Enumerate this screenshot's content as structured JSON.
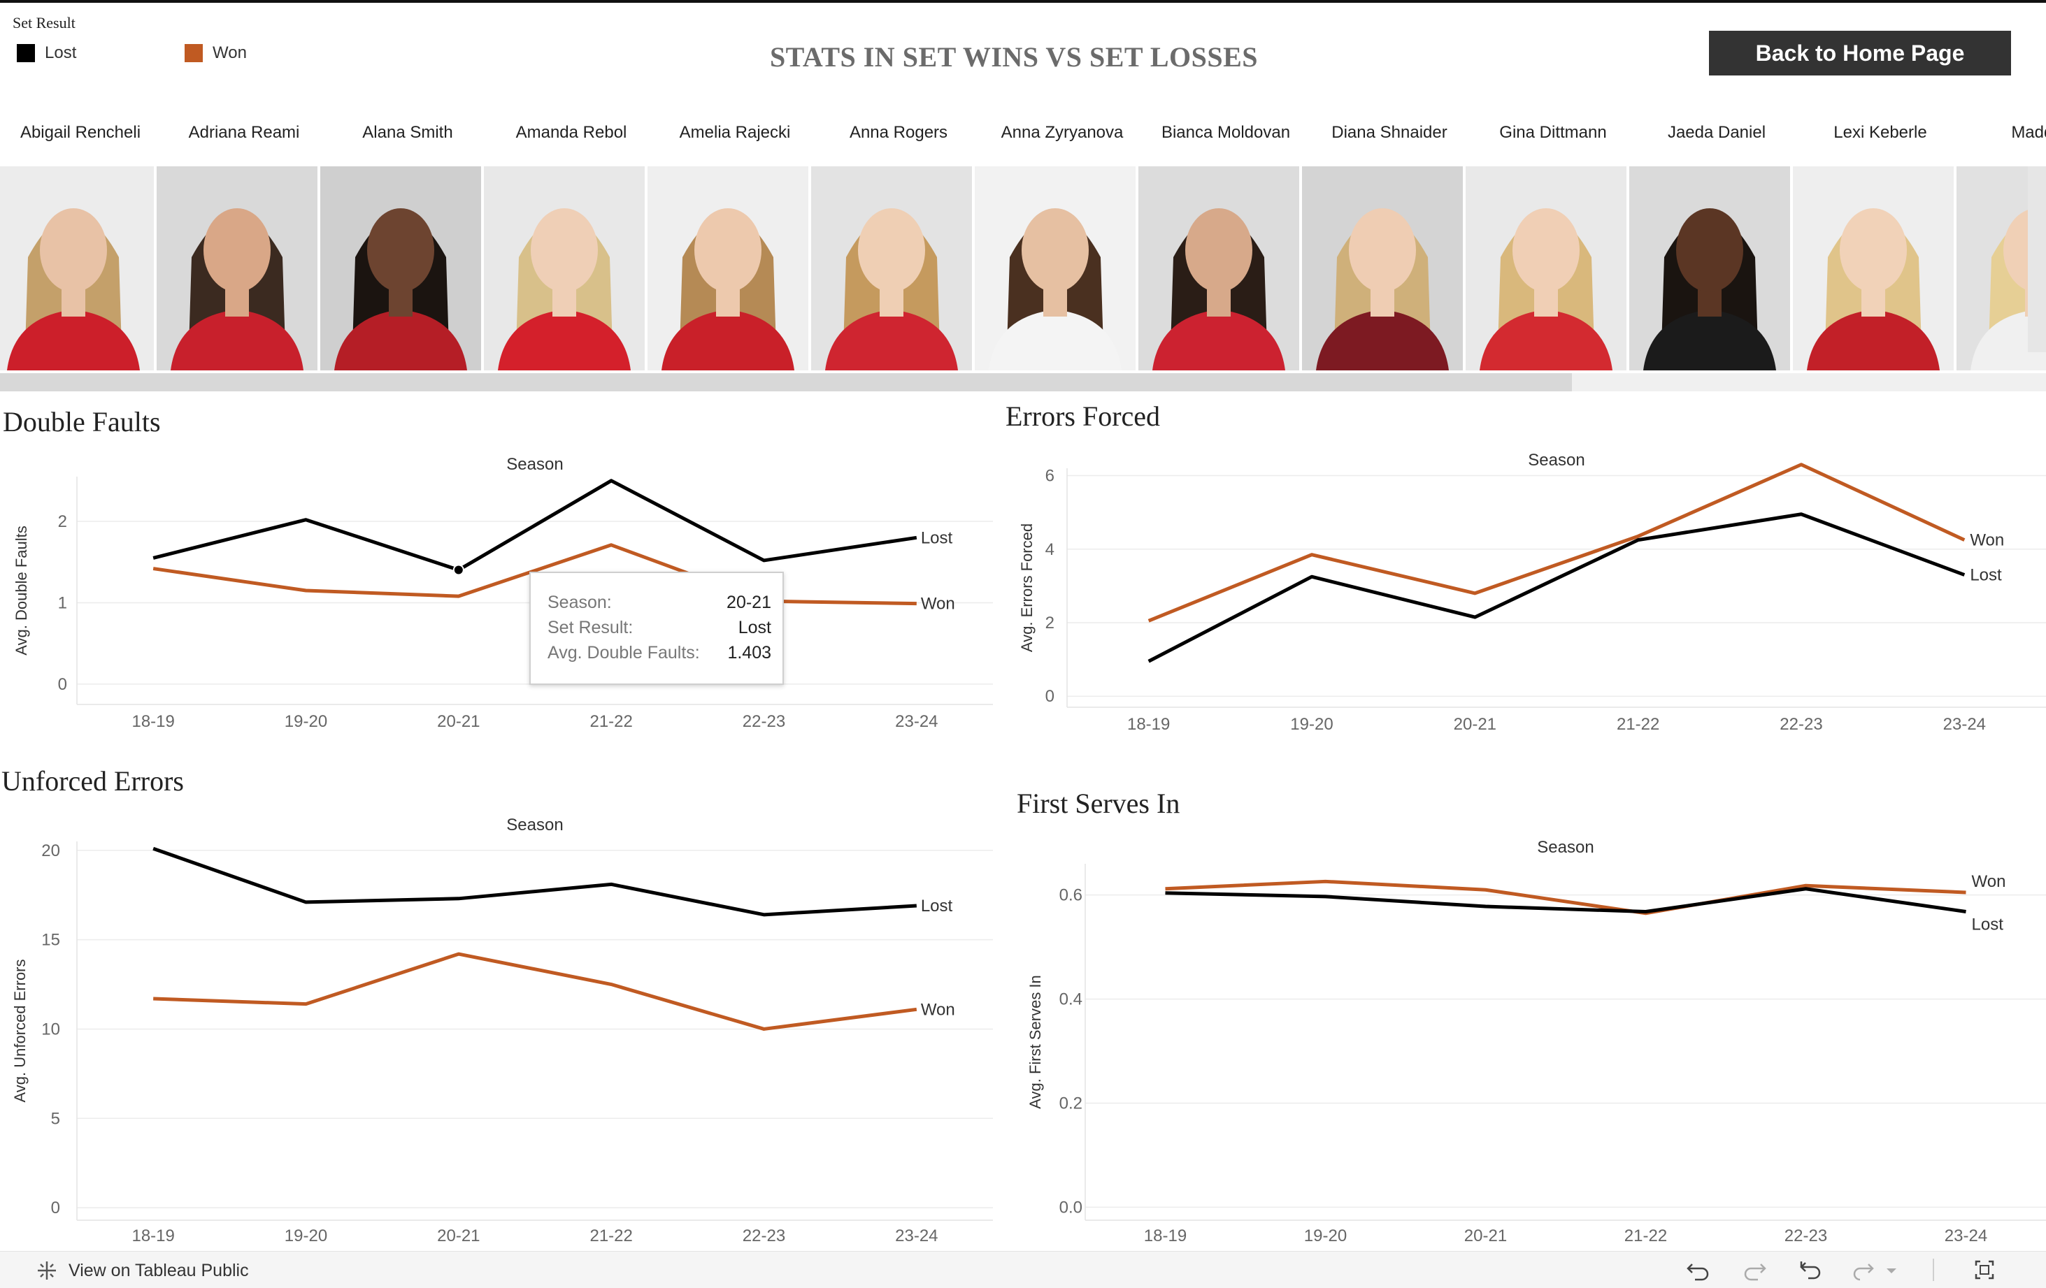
{
  "legend": {
    "title": "Set Result",
    "items": [
      {
        "label": "Lost",
        "color": "#000000"
      },
      {
        "label": "Won",
        "color": "#c05a22"
      }
    ]
  },
  "header": {
    "title": "STATS IN SET WINS VS SET LOSSES",
    "home_button": "Back to Home Page"
  },
  "players": [
    "Abigail Rencheli",
    "Adriana Reami",
    "Alana Smith",
    "Amanda Rebol",
    "Amelia Rajecki",
    "Anna Rogers",
    "Anna Zyryanova",
    "Bianca Moldovan",
    "Diana Shnaider",
    "Gina Dittmann",
    "Jaeda Daniel",
    "Lexi Keberle",
    "Maddy Z"
  ],
  "colors": {
    "lost": "#000000",
    "won": "#c05a22"
  },
  "tooltip": {
    "season_key": "Season:",
    "season_val": "20-21",
    "result_key": "Set Result:",
    "result_val": "Lost",
    "metric_key": "Avg. Double Faults:",
    "metric_val": "1.403"
  },
  "footer": {
    "link": "View on Tableau Public",
    "icons": [
      "undo-icon",
      "redo-icon",
      "revert-icon",
      "refresh-icon",
      "dropdown-icon",
      "fullscreen-icon"
    ]
  },
  "chart_data": [
    {
      "type": "line",
      "title": "Double Faults",
      "xlabel": "Season",
      "ylabel": "Avg. Double Faults",
      "categories": [
        "18-19",
        "19-20",
        "20-21",
        "21-22",
        "22-23",
        "23-24"
      ],
      "ylim": [
        -0.25,
        2.55
      ],
      "yticks": [
        0,
        1,
        2
      ],
      "yticklabels": [
        "0",
        "1",
        "2"
      ],
      "series": [
        {
          "name": "Lost",
          "values": [
            1.55,
            2.02,
            1.403,
            2.5,
            1.52,
            1.8
          ]
        },
        {
          "name": "Won",
          "values": [
            1.42,
            1.15,
            1.08,
            1.71,
            1.02,
            0.99
          ]
        }
      ]
    },
    {
      "type": "line",
      "title": "Errors Forced",
      "xlabel": "Season",
      "ylabel": "Avg. Errors Forced",
      "categories": [
        "18-19",
        "19-20",
        "20-21",
        "21-22",
        "22-23",
        "23-24"
      ],
      "ylim": [
        -0.3,
        6.2
      ],
      "yticks": [
        0,
        2,
        4,
        6
      ],
      "yticklabels": [
        "0",
        "2",
        "4",
        "6"
      ],
      "series": [
        {
          "name": "Won",
          "values": [
            2.05,
            3.85,
            2.8,
            4.35,
            6.3,
            4.25
          ]
        },
        {
          "name": "Lost",
          "values": [
            0.95,
            3.25,
            2.15,
            4.25,
            4.95,
            3.3
          ]
        }
      ]
    },
    {
      "type": "line",
      "title": "Unforced Errors",
      "xlabel": "Season",
      "ylabel": "Avg. Unforced Errors",
      "categories": [
        "18-19",
        "19-20",
        "20-21",
        "21-22",
        "22-23",
        "23-24"
      ],
      "ylim": [
        -0.7,
        20.5
      ],
      "yticks": [
        0,
        5,
        10,
        15,
        20
      ],
      "yticklabels": [
        "0",
        "5",
        "10",
        "15",
        "20"
      ],
      "series": [
        {
          "name": "Lost",
          "values": [
            20.1,
            17.1,
            17.3,
            18.1,
            16.4,
            16.9
          ]
        },
        {
          "name": "Won",
          "values": [
            11.7,
            11.4,
            14.2,
            12.5,
            10.0,
            11.1
          ]
        }
      ]
    },
    {
      "type": "line",
      "title": "First Serves In",
      "xlabel": "Season",
      "ylabel": "Avg. First Serves In",
      "categories": [
        "18-19",
        "19-20",
        "20-21",
        "21-22",
        "22-23",
        "23-24"
      ],
      "ylim": [
        -0.025,
        0.66
      ],
      "yticks": [
        0.0,
        0.2,
        0.4,
        0.6
      ],
      "yticklabels": [
        "0.0",
        "0.2",
        "0.4",
        "0.6"
      ],
      "series": [
        {
          "name": "Won",
          "values": [
            0.612,
            0.626,
            0.61,
            0.565,
            0.618,
            0.605
          ]
        },
        {
          "name": "Lost",
          "values": [
            0.604,
            0.597,
            0.578,
            0.568,
            0.612,
            0.568
          ]
        }
      ]
    }
  ]
}
